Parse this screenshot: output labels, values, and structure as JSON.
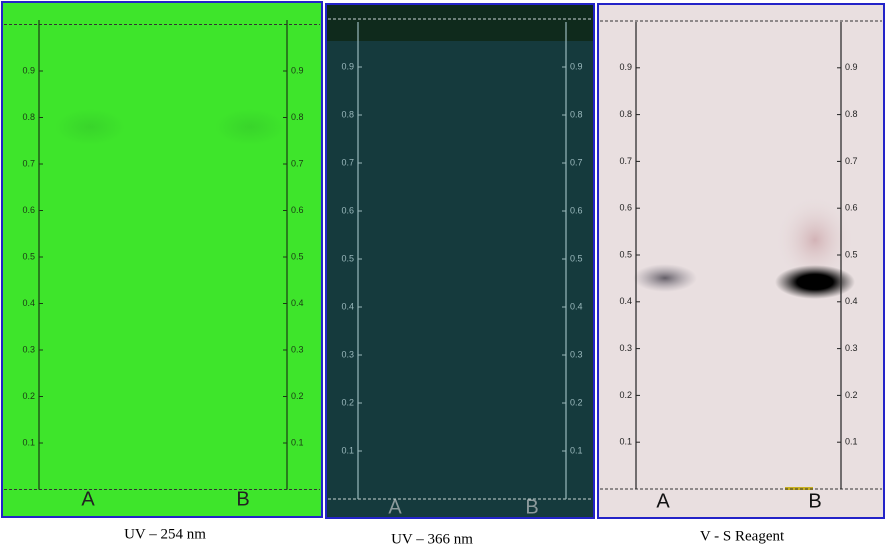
{
  "ticks": [
    0.1,
    0.2,
    0.3,
    0.4,
    0.5,
    0.6,
    0.7,
    0.8,
    0.9
  ],
  "panels": [
    {
      "caption": "UV – 254 nm",
      "lanes": [
        "A",
        "B"
      ]
    },
    {
      "caption": "UV – 366 nm",
      "lanes": [
        "A",
        "B"
      ]
    },
    {
      "caption": "V - S Reagent",
      "lanes": [
        "A",
        "B"
      ]
    }
  ]
}
